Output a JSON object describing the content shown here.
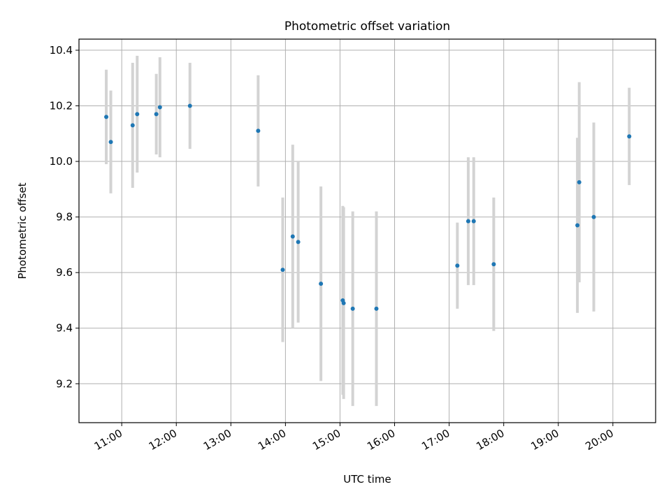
{
  "chart_data": {
    "type": "scatter",
    "title": "Photometric offset variation",
    "xlabel": "UTC time",
    "ylabel": "Photometric offset",
    "xlim": [
      "10:13",
      "20:47"
    ],
    "ylim": [
      9.06,
      10.44
    ],
    "x_ticks": [
      "11:00",
      "12:00",
      "13:00",
      "14:00",
      "15:00",
      "16:00",
      "17:00",
      "18:00",
      "19:00",
      "20:00"
    ],
    "y_ticks": [
      9.2,
      9.4,
      9.6,
      9.8,
      10.0,
      10.2,
      10.4
    ],
    "y_tick_labels": [
      "9.2",
      "9.4",
      "9.6",
      "9.8",
      "10.0",
      "10.2",
      "10.4"
    ],
    "grid": true,
    "marker_color": "#1f77b4",
    "errorbar_color": "#d3d3d3",
    "points": [
      {
        "time": "10:43",
        "y": 10.16,
        "err": 0.17
      },
      {
        "time": "10:48",
        "y": 10.07,
        "err": 0.185
      },
      {
        "time": "11:12",
        "y": 10.13,
        "err": 0.225
      },
      {
        "time": "11:17",
        "y": 10.17,
        "err": 0.21
      },
      {
        "time": "11:38",
        "y": 10.17,
        "err": 0.145
      },
      {
        "time": "11:42",
        "y": 10.195,
        "err": 0.18
      },
      {
        "time": "12:15",
        "y": 10.2,
        "err": 0.155
      },
      {
        "time": "13:30",
        "y": 10.11,
        "err": 0.2
      },
      {
        "time": "13:57",
        "y": 9.61,
        "err": 0.26
      },
      {
        "time": "14:08",
        "y": 9.73,
        "err": 0.33
      },
      {
        "time": "14:14",
        "y": 9.71,
        "err": 0.29
      },
      {
        "time": "14:39",
        "y": 9.56,
        "err": 0.35
      },
      {
        "time": "15:03",
        "y": 9.5,
        "err": 0.34
      },
      {
        "time": "15:04",
        "y": 9.49,
        "err": 0.345
      },
      {
        "time": "15:14",
        "y": 9.47,
        "err": 0.35
      },
      {
        "time": "15:40",
        "y": 9.47,
        "err": 0.35
      },
      {
        "time": "17:09",
        "y": 9.625,
        "err": 0.155
      },
      {
        "time": "17:21",
        "y": 9.785,
        "err": 0.23
      },
      {
        "time": "17:27",
        "y": 9.785,
        "err": 0.23
      },
      {
        "time": "17:49",
        "y": 9.63,
        "err": 0.24
      },
      {
        "time": "19:21",
        "y": 9.77,
        "err": 0.315
      },
      {
        "time": "19:23",
        "y": 9.925,
        "err": 0.36
      },
      {
        "time": "19:39",
        "y": 9.8,
        "err": 0.34
      },
      {
        "time": "20:18",
        "y": 10.09,
        "err": 0.175
      }
    ]
  }
}
